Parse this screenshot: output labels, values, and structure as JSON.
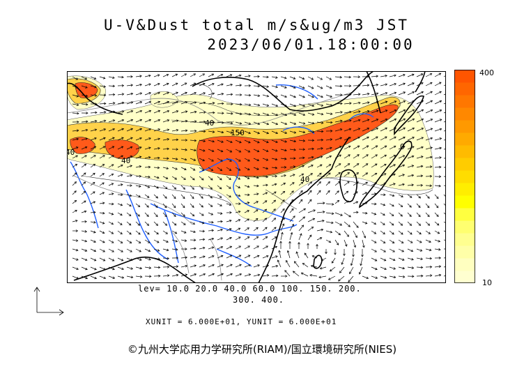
{
  "title": {
    "line1": "U-V&Dust total m/s&ug/m3 JST",
    "line2": "2023/06/01.18:00:00"
  },
  "colorbar": {
    "max_label": "400",
    "min_label": "10",
    "colors": [
      "#ffffd0",
      "#ffffc0",
      "#ffffa8",
      "#ffff90",
      "#ffff70",
      "#ffff40",
      "#ffff00",
      "#ffee00",
      "#ffdd00",
      "#ffcc00",
      "#ffbb00",
      "#ffaa00",
      "#ff9900",
      "#ff8800",
      "#ff7700",
      "#ff6600",
      "#ff5500"
    ]
  },
  "levels": {
    "line1": "lev= 10.0 20.0 40.0 60.0 100. 150. 200.",
    "line2": "300. 400."
  },
  "contour_labels": [
    "40",
    "150",
    "40",
    "40",
    "0",
    "40"
  ],
  "units": "XUNIT = 6.000E+01, YUNIT = 6.000E+01",
  "copyright": "©九州大学応用力学研究所(RIAM)/国立環境研究所(NIES)",
  "map_colors": {
    "coast": "#000000",
    "river": "#1f5fff",
    "border": "#8a8a8a",
    "dust_high": "#ff5a1a",
    "dust_mid": "#ffd24a",
    "dust_low": "#ffffc8"
  }
}
